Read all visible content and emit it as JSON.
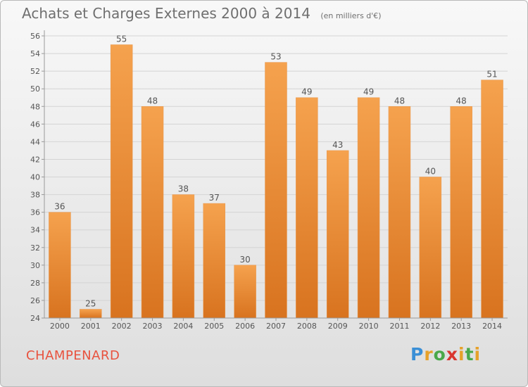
{
  "chart_data": {
    "type": "bar",
    "title": "Achats et Charges Externes 2000 à 2014",
    "unit_note": "(en milliers d'€)",
    "categories": [
      "2000",
      "2001",
      "2002",
      "2003",
      "2004",
      "2005",
      "2006",
      "2007",
      "2008",
      "2009",
      "2010",
      "2011",
      "2012",
      "2013",
      "2014"
    ],
    "values": [
      36,
      25,
      55,
      48,
      38,
      37,
      30,
      53,
      49,
      43,
      49,
      48,
      40,
      48,
      51
    ],
    "ylim": [
      24,
      56
    ],
    "yticks": [
      24,
      26,
      28,
      30,
      32,
      34,
      36,
      38,
      40,
      42,
      44,
      46,
      48,
      50,
      52,
      54,
      56
    ],
    "grid": true,
    "bar_color_top": "#f5a24e",
    "bar_color_bottom": "#d8731f"
  },
  "footer": {
    "place": "CHAMPENARD"
  },
  "logo": {
    "letters": [
      "P",
      "r",
      "o",
      "x",
      "i",
      "t",
      "i"
    ],
    "colors": [
      "#3a8fd6",
      "#e6a12a",
      "#4aa84a",
      "#d9362f",
      "#e6a12a",
      "#4aa84a",
      "#e6a12a"
    ]
  }
}
